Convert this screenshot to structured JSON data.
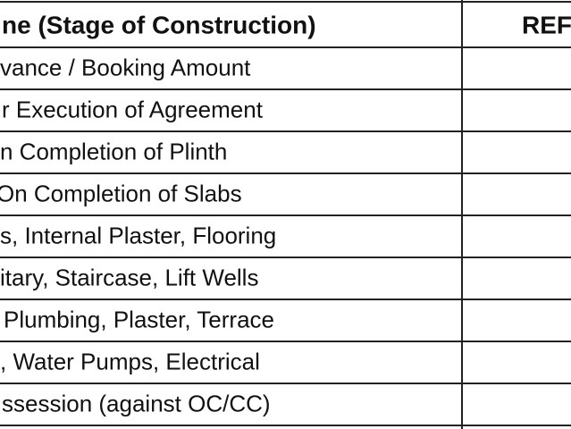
{
  "table": {
    "header": [
      "ne (Stage of Construction)",
      "REF"
    ],
    "rows": [
      [
        "vance / Booking Amount"
      ],
      [
        "r Execution of Agreement"
      ],
      [
        "n Completion of Plinth"
      ],
      [
        "On Completion of Slabs"
      ],
      [
        "s, Internal Plaster, Flooring"
      ],
      [
        "itary, Staircase, Lift Wells"
      ],
      [
        "Plumbing, Plaster, Terrace"
      ],
      [
        ", Water Pumps, Electrical"
      ],
      [
        "ssession (against OC/CC)"
      ]
    ]
  }
}
